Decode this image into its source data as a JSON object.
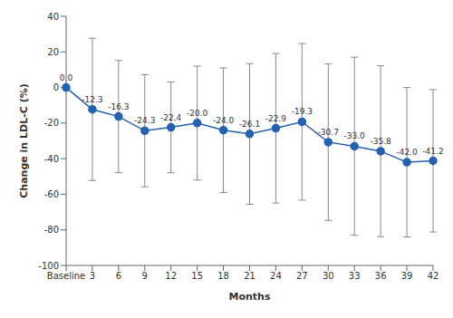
{
  "chart_data": {
    "type": "line",
    "x_label": "Months",
    "y_label": "Change in LDL-C (%)",
    "categories": [
      "Baseline",
      "3",
      "6",
      "9",
      "12",
      "15",
      "18",
      "21",
      "24",
      "27",
      "30",
      "33",
      "36",
      "39",
      "42"
    ],
    "values": [
      0.0,
      -12.3,
      -16.3,
      -24.3,
      -22.4,
      -20.0,
      -24.0,
      -26.1,
      -22.9,
      -19.3,
      -30.7,
      -33.0,
      -35.8,
      -42.0,
      -41.2
    ],
    "value_labels": [
      "0.0",
      "-12.3",
      "-16.3",
      "-24.3",
      "-22.4",
      "-20.0",
      "-24.0",
      "-26.1",
      "-22.9",
      "-19.3",
      "-30.7",
      "-33.0",
      "-35.8",
      "-42.0",
      "-41.2"
    ],
    "error": [
      null,
      40,
      31.5,
      31.5,
      25.5,
      32,
      35,
      39.5,
      42,
      44,
      44,
      50,
      48,
      42,
      40
    ],
    "color": "#2461b0",
    "marker": "circle",
    "data_labels": true,
    "ylim": [
      -100,
      40
    ],
    "yticks": [
      -100,
      -80,
      -60,
      -40,
      -20,
      0,
      20,
      40
    ],
    "grid": false
  }
}
